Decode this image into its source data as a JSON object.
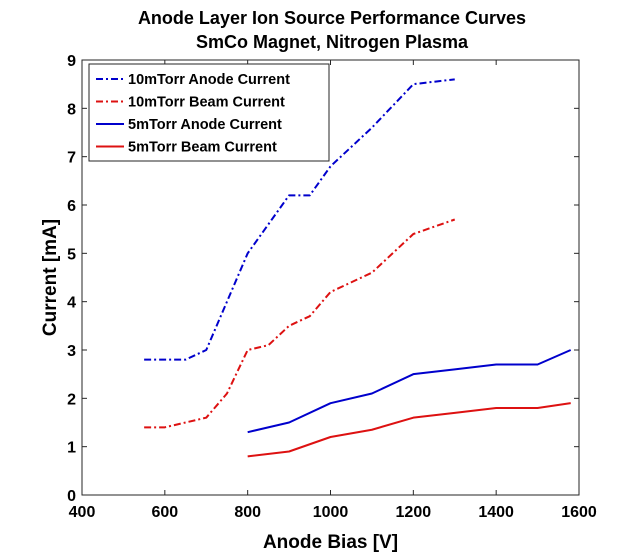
{
  "chart_data": {
    "type": "line",
    "title": "Anode Layer Ion Source Performance Curves",
    "subtitle": "SmCo Magnet, Nitrogen Plasma",
    "xlabel": "Anode Bias [V]",
    "ylabel": "Current [mA]",
    "xlim": [
      400,
      1600
    ],
    "ylim": [
      0,
      9
    ],
    "xticks": [
      400,
      600,
      800,
      1000,
      1200,
      1400,
      1600
    ],
    "yticks": [
      0,
      1,
      2,
      3,
      4,
      5,
      6,
      7,
      8,
      9
    ],
    "grid": false,
    "legend_position": "top-left",
    "series": [
      {
        "name": "10mTorr Anode Current",
        "color": "#0000cc",
        "style": "dashdot",
        "x": [
          550,
          600,
          650,
          700,
          800,
          900,
          950,
          1000,
          1100,
          1200,
          1300
        ],
        "y": [
          2.8,
          2.8,
          2.8,
          3.0,
          5.0,
          6.2,
          6.2,
          6.8,
          7.6,
          8.5,
          8.6
        ]
      },
      {
        "name": "10mTorr Beam Current",
        "color": "#dd1111",
        "style": "dashdot",
        "x": [
          550,
          600,
          650,
          700,
          750,
          800,
          850,
          900,
          950,
          1000,
          1100,
          1200,
          1300
        ],
        "y": [
          1.4,
          1.4,
          1.5,
          1.6,
          2.1,
          3.0,
          3.1,
          3.5,
          3.7,
          4.2,
          4.6,
          5.4,
          5.7
        ]
      },
      {
        "name": "5mTorr Anode Current",
        "color": "#0000cc",
        "style": "solid",
        "x": [
          800,
          900,
          1000,
          1100,
          1200,
          1300,
          1400,
          1500,
          1580
        ],
        "y": [
          1.3,
          1.5,
          1.9,
          2.1,
          2.5,
          2.6,
          2.7,
          2.7,
          3.0
        ]
      },
      {
        "name": "5mTorr Beam Current",
        "color": "#dd1111",
        "style": "solid",
        "x": [
          800,
          900,
          1000,
          1100,
          1200,
          1300,
          1400,
          1500,
          1580
        ],
        "y": [
          0.8,
          0.9,
          1.2,
          1.35,
          1.6,
          1.7,
          1.8,
          1.8,
          1.9
        ]
      }
    ]
  }
}
